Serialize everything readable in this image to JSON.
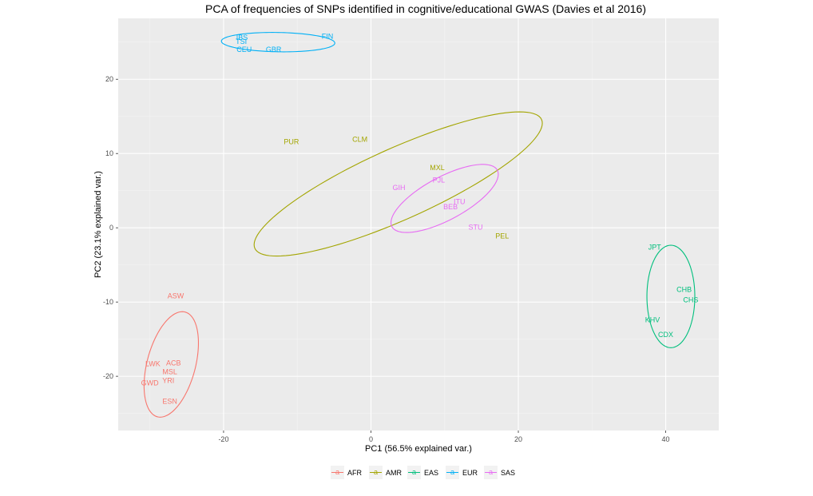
{
  "chart_data": {
    "type": "scatter",
    "title": "PCA of frequencies of SNPs identified in cognitive/educational GWAS (Davies et al 2016)",
    "xlabel": "PC1 (56.5% explained var.)",
    "ylabel": "PC2 (23.1% explained var.)",
    "xlim": [
      -34.3,
      47.2
    ],
    "ylim": [
      -27.3,
      28.2
    ],
    "xticks": [
      -20,
      0,
      20,
      40
    ],
    "yticks": [
      -20,
      -10,
      0,
      10,
      20
    ],
    "xtick_labels": [
      "-20",
      "0",
      "20",
      "40"
    ],
    "ytick_labels": [
      "-20",
      "-10",
      "0",
      "10",
      "20"
    ],
    "grid": true,
    "legend_position": "bottom",
    "series": [
      {
        "name": "AFR",
        "color": "#F8766D",
        "points": [
          {
            "label": "ASW",
            "x": -26.5,
            "y": -9.2
          },
          {
            "label": "ACB",
            "x": -26.8,
            "y": -18.2
          },
          {
            "label": "LWK",
            "x": -29.6,
            "y": -18.3
          },
          {
            "label": "MSL",
            "x": -27.3,
            "y": -19.4
          },
          {
            "label": "YRI",
            "x": -27.5,
            "y": -20.6
          },
          {
            "label": "GWD",
            "x": -30.0,
            "y": -20.9
          },
          {
            "label": "ESN",
            "x": -27.3,
            "y": -23.4
          }
        ],
        "ellipse": {
          "cx": -27.1,
          "cy": -18.4,
          "rx": 3.28,
          "ry": 7.3,
          "angle_deg": -15
        }
      },
      {
        "name": "AMR",
        "color": "#A3A500",
        "points": [
          {
            "label": "PUR",
            "x": -10.8,
            "y": 11.6
          },
          {
            "label": "CLM",
            "x": -1.5,
            "y": 11.9
          },
          {
            "label": "MXL",
            "x": 9.0,
            "y": 8.1
          },
          {
            "label": "PEL",
            "x": 17.8,
            "y": -1.1
          }
        ],
        "ellipse": {
          "cx": 3.7,
          "cy": 5.9,
          "rx": 21.3,
          "ry": 4.8,
          "angle_deg": 24
        }
      },
      {
        "name": "EAS",
        "color": "#00BF7D",
        "points": [
          {
            "label": "JPT",
            "x": 38.5,
            "y": -2.6
          },
          {
            "label": "CHB",
            "x": 42.5,
            "y": -8.3
          },
          {
            "label": "CHS",
            "x": 43.4,
            "y": -9.7
          },
          {
            "label": "KHV",
            "x": 38.2,
            "y": -12.4
          },
          {
            "label": "CDX",
            "x": 40.0,
            "y": -14.4
          }
        ],
        "ellipse": {
          "cx": 40.7,
          "cy": -9.25,
          "rx": 3.25,
          "ry": 6.9,
          "angle_deg": 0
        }
      },
      {
        "name": "EUR",
        "color": "#00B0F6",
        "points": [
          {
            "label": "IBS",
            "x": -17.5,
            "y": 25.6
          },
          {
            "label": "TSI",
            "x": -17.6,
            "y": 25.1
          },
          {
            "label": "FIN",
            "x": -5.9,
            "y": 25.8
          },
          {
            "label": "CEU",
            "x": -17.2,
            "y": 24.0
          },
          {
            "label": "GBR",
            "x": -13.2,
            "y": 24.0
          }
        ],
        "ellipse": {
          "cx": -12.6,
          "cy": 25.0,
          "rx": 7.7,
          "ry": 1.3,
          "angle_deg": -1
        }
      },
      {
        "name": "SAS",
        "color": "#E76BF3",
        "points": [
          {
            "label": "PJL",
            "x": 9.2,
            "y": 6.4
          },
          {
            "label": "GIH",
            "x": 3.8,
            "y": 5.4
          },
          {
            "label": "ITU",
            "x": 12.0,
            "y": 3.5
          },
          {
            "label": "BEB",
            "x": 10.8,
            "y": 2.8
          },
          {
            "label": "STU",
            "x": 14.2,
            "y": 0.1
          }
        ],
        "ellipse": {
          "cx": 10.0,
          "cy": 3.95,
          "rx": 8.1,
          "ry": 2.9,
          "angle_deg": 28
        }
      }
    ]
  }
}
